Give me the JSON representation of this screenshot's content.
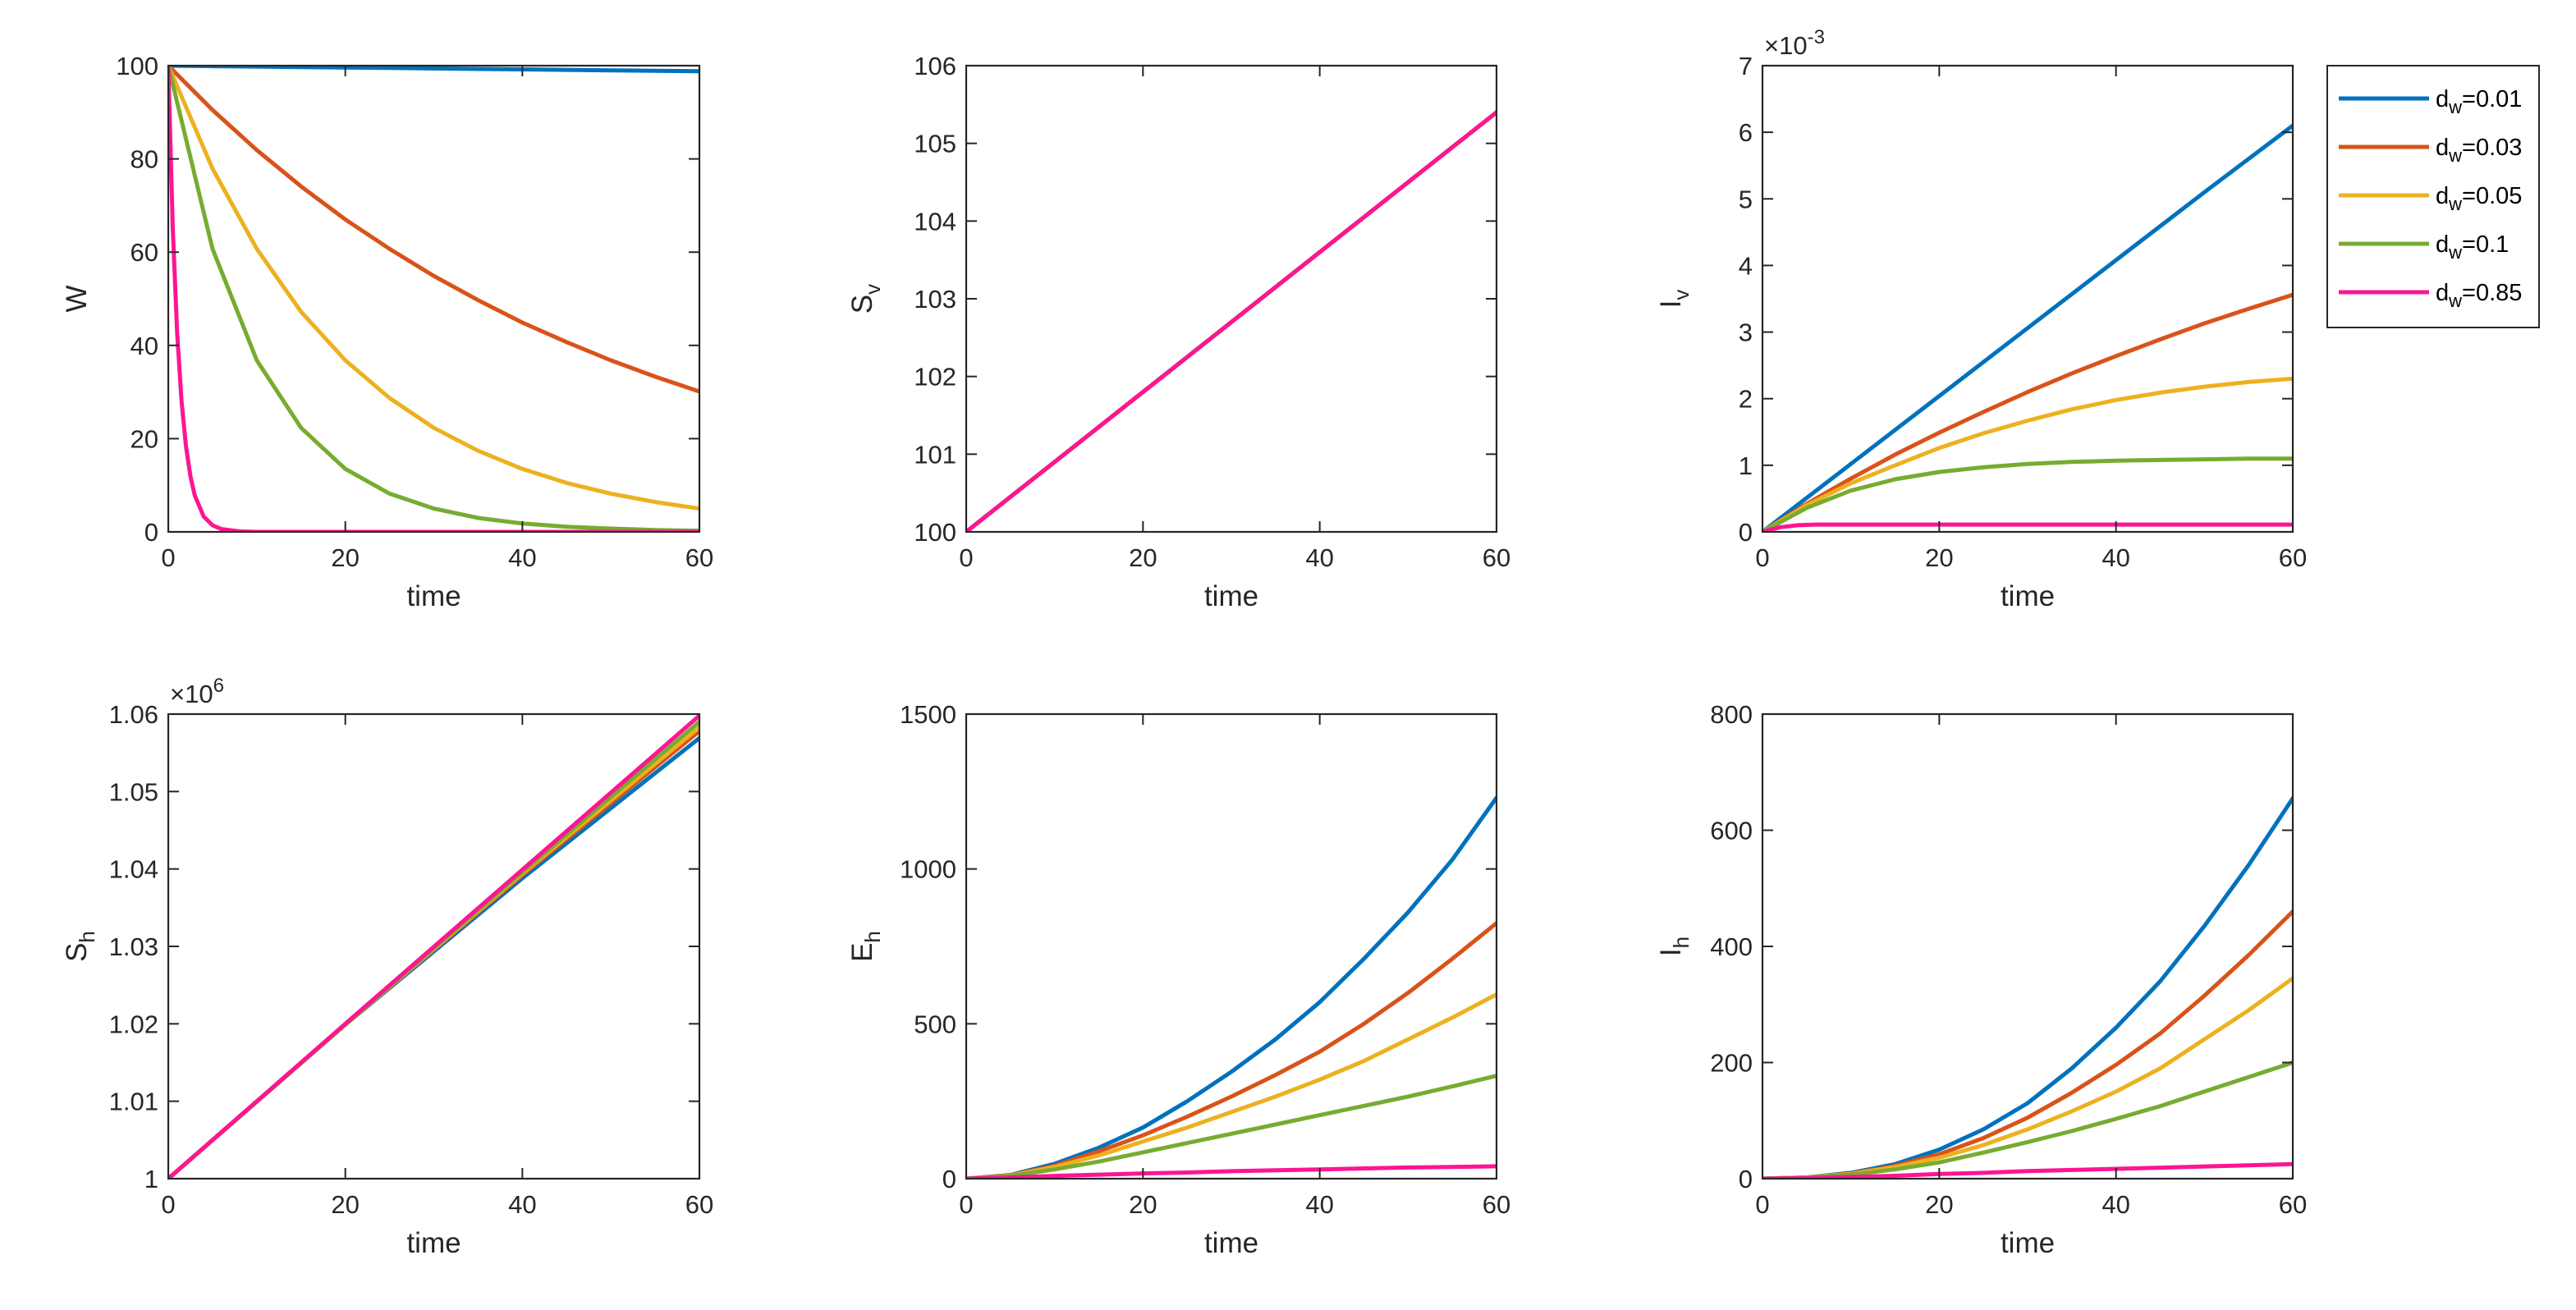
{
  "chart_data": [
    {
      "id": "W",
      "type": "line",
      "ylabel": "W",
      "ylabel_sub": "",
      "xlabel": "time",
      "xlim": [
        0,
        60
      ],
      "ylim": [
        0,
        100
      ],
      "xticks": [
        0,
        20,
        40,
        60
      ],
      "xtick_labels": [
        "0",
        "20",
        "40",
        "60"
      ],
      "yticks": [
        0,
        20,
        40,
        60,
        80,
        100
      ],
      "ytick_labels": [
        "0",
        "20",
        "40",
        "60",
        "80",
        "100"
      ],
      "exponent": null,
      "series": [
        {
          "name": "d_w=0.01",
          "x": [
            0,
            5,
            10,
            15,
            20,
            25,
            30,
            35,
            40,
            45,
            50,
            55,
            60
          ],
          "values": [
            100,
            99.9,
            99.8,
            99.7,
            99.6,
            99.5,
            99.4,
            99.3,
            99.2,
            99.1,
            99.0,
            98.9,
            98.8
          ]
        },
        {
          "name": "d_w=0.03",
          "x": [
            0,
            5,
            10,
            15,
            20,
            25,
            30,
            35,
            40,
            45,
            50,
            55,
            60
          ],
          "values": [
            100,
            90.5,
            81.9,
            74.1,
            67.0,
            60.7,
            54.9,
            49.7,
            44.9,
            40.7,
            36.8,
            33.3,
            30.1
          ]
        },
        {
          "name": "d_w=0.05",
          "x": [
            0,
            5,
            10,
            15,
            20,
            25,
            30,
            35,
            40,
            45,
            50,
            55,
            60
          ],
          "values": [
            100,
            77.9,
            60.7,
            47.2,
            36.8,
            28.7,
            22.3,
            17.4,
            13.5,
            10.5,
            8.2,
            6.4,
            5.0
          ]
        },
        {
          "name": "d_w=0.1",
          "x": [
            0,
            5,
            10,
            15,
            20,
            25,
            30,
            35,
            40,
            45,
            50,
            55,
            60
          ],
          "values": [
            100,
            60.7,
            36.8,
            22.3,
            13.5,
            8.2,
            5.0,
            3.0,
            1.8,
            1.1,
            0.7,
            0.4,
            0.25
          ]
        },
        {
          "name": "d_w=0.85",
          "x": [
            0,
            0.5,
            1,
            1.5,
            2,
            2.5,
            3,
            4,
            5,
            6,
            8,
            10,
            20,
            40,
            60
          ],
          "values": [
            100,
            65.4,
            42.7,
            27.9,
            18.3,
            11.9,
            7.8,
            3.3,
            1.4,
            0.6,
            0.1,
            0.0,
            0,
            0,
            0
          ]
        }
      ]
    },
    {
      "id": "Sv",
      "type": "line",
      "ylabel": "S",
      "ylabel_sub": "v",
      "xlabel": "time",
      "xlim": [
        0,
        60
      ],
      "ylim": [
        100,
        106
      ],
      "xticks": [
        0,
        20,
        40,
        60
      ],
      "xtick_labels": [
        "0",
        "20",
        "40",
        "60"
      ],
      "yticks": [
        100,
        101,
        102,
        103,
        104,
        105,
        106
      ],
      "ytick_labels": [
        "100",
        "101",
        "102",
        "103",
        "104",
        "105",
        "106"
      ],
      "exponent": null,
      "series": [
        {
          "name": "d_w=0.01",
          "x": [
            0,
            60
          ],
          "values": [
            100,
            105.4
          ]
        },
        {
          "name": "d_w=0.03",
          "x": [
            0,
            60
          ],
          "values": [
            100,
            105.4
          ]
        },
        {
          "name": "d_w=0.05",
          "x": [
            0,
            60
          ],
          "values": [
            100,
            105.4
          ]
        },
        {
          "name": "d_w=0.1",
          "x": [
            0,
            60
          ],
          "values": [
            100,
            105.4
          ]
        },
        {
          "name": "d_w=0.85",
          "x": [
            0,
            60
          ],
          "values": [
            100,
            105.4
          ]
        }
      ]
    },
    {
      "id": "Iv",
      "type": "line",
      "ylabel": "I",
      "ylabel_sub": "v",
      "xlabel": "time",
      "xlim": [
        0,
        60
      ],
      "ylim": [
        0,
        7
      ],
      "xticks": [
        0,
        20,
        40,
        60
      ],
      "xtick_labels": [
        "0",
        "20",
        "40",
        "60"
      ],
      "yticks": [
        0,
        1,
        2,
        3,
        4,
        5,
        6,
        7
      ],
      "ytick_labels": [
        "0",
        "1",
        "2",
        "3",
        "4",
        "5",
        "6",
        "7"
      ],
      "exponent": {
        "base": "×10",
        "power": "-3"
      },
      "series": [
        {
          "name": "d_w=0.01",
          "x": [
            0,
            10,
            20,
            30,
            40,
            50,
            60
          ],
          "values": [
            0,
            1.02,
            2.04,
            3.06,
            4.08,
            5.1,
            6.1
          ]
        },
        {
          "name": "d_w=0.03",
          "x": [
            0,
            5,
            10,
            15,
            20,
            25,
            30,
            35,
            40,
            45,
            50,
            55,
            60
          ],
          "values": [
            0,
            0.42,
            0.8,
            1.16,
            1.49,
            1.8,
            2.1,
            2.38,
            2.64,
            2.89,
            3.13,
            3.35,
            3.56
          ]
        },
        {
          "name": "d_w=0.05",
          "x": [
            0,
            5,
            10,
            15,
            20,
            25,
            30,
            35,
            40,
            45,
            50,
            55,
            60
          ],
          "values": [
            0,
            0.4,
            0.73,
            1.0,
            1.26,
            1.48,
            1.67,
            1.84,
            1.98,
            2.09,
            2.18,
            2.25,
            2.3
          ]
        },
        {
          "name": "d_w=0.1",
          "x": [
            0,
            5,
            10,
            15,
            20,
            25,
            30,
            35,
            40,
            45,
            50,
            55,
            60
          ],
          "values": [
            0,
            0.36,
            0.62,
            0.79,
            0.9,
            0.97,
            1.02,
            1.05,
            1.07,
            1.08,
            1.09,
            1.1,
            1.1
          ]
        },
        {
          "name": "d_w=0.85",
          "x": [
            0,
            2,
            4,
            6,
            8,
            60
          ],
          "values": [
            0,
            0.07,
            0.1,
            0.11,
            0.11,
            0.11
          ]
        }
      ]
    },
    {
      "id": "Sh",
      "type": "line",
      "ylabel": "S",
      "ylabel_sub": "h",
      "xlabel": "time",
      "xlim": [
        0,
        60
      ],
      "ylim": [
        1.0,
        1.06
      ],
      "xticks": [
        0,
        20,
        40,
        60
      ],
      "xtick_labels": [
        "0",
        "20",
        "40",
        "60"
      ],
      "yticks": [
        1.0,
        1.01,
        1.02,
        1.03,
        1.04,
        1.05,
        1.06
      ],
      "ytick_labels": [
        "1",
        "1.01",
        "1.02",
        "1.03",
        "1.04",
        "1.05",
        "1.06"
      ],
      "exponent": {
        "base": "×10",
        "power": "6"
      },
      "series": [
        {
          "name": "d_w=0.01",
          "x": [
            0,
            20,
            40,
            60
          ],
          "values": [
            1.0,
            1.0199,
            1.0388,
            1.0569
          ]
        },
        {
          "name": "d_w=0.03",
          "x": [
            0,
            20,
            40,
            60
          ],
          "values": [
            1.0,
            1.0199,
            1.0392,
            1.0578
          ]
        },
        {
          "name": "d_w=0.05",
          "x": [
            0,
            20,
            40,
            60
          ],
          "values": [
            1.0,
            1.0199,
            1.0394,
            1.0583
          ]
        },
        {
          "name": "d_w=0.1",
          "x": [
            0,
            20,
            40,
            60
          ],
          "values": [
            1.0,
            1.0199,
            1.0396,
            1.059
          ]
        },
        {
          "name": "d_w=0.85",
          "x": [
            0,
            20,
            40,
            60
          ],
          "values": [
            1.0,
            1.02,
            1.0399,
            1.0598
          ]
        }
      ]
    },
    {
      "id": "Eh",
      "type": "line",
      "ylabel": "E",
      "ylabel_sub": "h",
      "xlabel": "time",
      "xlim": [
        0,
        60
      ],
      "ylim": [
        0,
        1500
      ],
      "xticks": [
        0,
        20,
        40,
        60
      ],
      "xtick_labels": [
        "0",
        "20",
        "40",
        "60"
      ],
      "yticks": [
        0,
        500,
        1000,
        1500
      ],
      "ytick_labels": [
        "0",
        "500",
        "1000",
        "1500"
      ],
      "exponent": null,
      "series": [
        {
          "name": "d_w=0.01",
          "x": [
            0,
            5,
            10,
            15,
            20,
            25,
            30,
            35,
            40,
            45,
            50,
            55,
            60
          ],
          "values": [
            0,
            12,
            48,
            100,
            165,
            250,
            345,
            450,
            570,
            710,
            860,
            1030,
            1230
          ]
        },
        {
          "name": "d_w=0.03",
          "x": [
            0,
            5,
            10,
            15,
            20,
            25,
            30,
            35,
            40,
            45,
            50,
            55,
            60
          ],
          "values": [
            0,
            11,
            42,
            88,
            140,
            200,
            265,
            335,
            410,
            500,
            600,
            710,
            825
          ]
        },
        {
          "name": "d_w=0.05",
          "x": [
            0,
            5,
            10,
            15,
            20,
            25,
            30,
            35,
            40,
            45,
            50,
            55,
            60
          ],
          "values": [
            0,
            10,
            38,
            75,
            120,
            165,
            215,
            265,
            320,
            380,
            450,
            520,
            595
          ]
        },
        {
          "name": "d_w=0.1",
          "x": [
            0,
            5,
            10,
            15,
            20,
            25,
            30,
            35,
            40,
            45,
            50,
            55,
            60
          ],
          "values": [
            0,
            9,
            30,
            55,
            85,
            115,
            145,
            175,
            205,
            235,
            265,
            298,
            332
          ]
        },
        {
          "name": "d_w=0.85",
          "x": [
            0,
            5,
            10,
            15,
            20,
            25,
            30,
            35,
            40,
            45,
            50,
            55,
            60
          ],
          "values": [
            0,
            4,
            9,
            13,
            17,
            20,
            24,
            27,
            30,
            33,
            36,
            38,
            40
          ]
        }
      ]
    },
    {
      "id": "Ih",
      "type": "line",
      "ylabel": "I",
      "ylabel_sub": "h",
      "xlabel": "time",
      "xlim": [
        0,
        60
      ],
      "ylim": [
        0,
        800
      ],
      "xticks": [
        0,
        20,
        40,
        60
      ],
      "xtick_labels": [
        "0",
        "20",
        "40",
        "60"
      ],
      "yticks": [
        0,
        200,
        400,
        600,
        800
      ],
      "ytick_labels": [
        "0",
        "200",
        "400",
        "600",
        "800"
      ],
      "exponent": null,
      "series": [
        {
          "name": "d_w=0.01",
          "x": [
            0,
            5,
            10,
            15,
            20,
            25,
            30,
            35,
            40,
            45,
            50,
            55,
            60
          ],
          "values": [
            0,
            2,
            10,
            25,
            50,
            85,
            130,
            190,
            260,
            340,
            435,
            540,
            655
          ]
        },
        {
          "name": "d_w=0.03",
          "x": [
            0,
            5,
            10,
            15,
            20,
            25,
            30,
            35,
            40,
            45,
            50,
            55,
            60
          ],
          "values": [
            0,
            2,
            9,
            22,
            42,
            70,
            105,
            148,
            196,
            250,
            315,
            385,
            460
          ]
        },
        {
          "name": "d_w=0.05",
          "x": [
            0,
            5,
            10,
            15,
            20,
            25,
            30,
            35,
            40,
            45,
            50,
            55,
            60
          ],
          "values": [
            0,
            2,
            8,
            20,
            36,
            58,
            85,
            116,
            150,
            190,
            240,
            290,
            345
          ]
        },
        {
          "name": "d_w=0.1",
          "x": [
            0,
            5,
            10,
            15,
            20,
            25,
            30,
            35,
            40,
            45,
            50,
            55,
            60
          ],
          "values": [
            0,
            2,
            7,
            16,
            28,
            45,
            63,
            82,
            103,
            125,
            150,
            175,
            200
          ]
        },
        {
          "name": "d_w=0.85",
          "x": [
            0,
            5,
            10,
            15,
            20,
            25,
            30,
            35,
            40,
            45,
            50,
            55,
            60
          ],
          "values": [
            0,
            1,
            3,
            5,
            8,
            10,
            13,
            15,
            17,
            19,
            21,
            23,
            25
          ]
        }
      ]
    }
  ],
  "legend": {
    "entries": [
      {
        "name": "d_w=0.01",
        "base": "d",
        "sub": "w",
        "suffix": "=0.01",
        "color": "#0072BD"
      },
      {
        "name": "d_w=0.03",
        "base": "d",
        "sub": "w",
        "suffix": "=0.03",
        "color": "#D95319"
      },
      {
        "name": "d_w=0.05",
        "base": "d",
        "sub": "w",
        "suffix": "=0.05",
        "color": "#EDB120"
      },
      {
        "name": "d_w=0.1",
        "base": "d",
        "sub": "w",
        "suffix": "=0.1",
        "color": "#77AC30"
      },
      {
        "name": "d_w=0.85",
        "base": "d",
        "sub": "w",
        "suffix": "=0.85",
        "color": "#FF1493"
      }
    ]
  }
}
